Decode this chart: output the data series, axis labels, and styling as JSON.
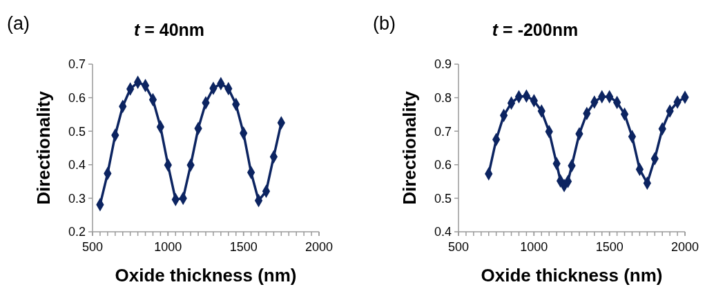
{
  "chart_data": [
    {
      "type": "line",
      "title": "t = 40nm",
      "annotations": [
        "(a)"
      ],
      "xlabel": "Oxide thickness (nm)",
      "ylabel": "Directionality",
      "marker": "diamond",
      "xlim": [
        500,
        2000
      ],
      "xticks": [
        500,
        1000,
        1500,
        2000
      ],
      "ylim": [
        0.2,
        0.7
      ],
      "yticks": [
        0.2,
        0.3,
        0.4,
        0.5,
        0.6,
        0.7
      ],
      "series": [
        {
          "color": "#0c2461",
          "x": [
            550,
            600,
            650,
            700,
            750,
            800,
            850,
            900,
            950,
            1000,
            1050,
            1100,
            1150,
            1200,
            1250,
            1300,
            1350,
            1400,
            1450,
            1500,
            1550,
            1600,
            1650,
            1700,
            1750
          ],
          "values": [
            0.281,
            0.374,
            0.488,
            0.574,
            0.626,
            0.646,
            0.636,
            0.594,
            0.513,
            0.399,
            0.296,
            0.3,
            0.399,
            0.508,
            0.585,
            0.628,
            0.642,
            0.627,
            0.58,
            0.494,
            0.377,
            0.293,
            0.321,
            0.424,
            0.525
          ]
        }
      ]
    },
    {
      "type": "line",
      "title": "t = -200nm",
      "annotations": [
        "(b)"
      ],
      "xlabel": "Oxide thickness (nm)",
      "ylabel": "Directionality",
      "marker": "diamond",
      "xlim": [
        500,
        2000
      ],
      "xticks": [
        500,
        1000,
        1500,
        2000
      ],
      "ylim": [
        0.4,
        0.9
      ],
      "yticks": [
        0.4,
        0.5,
        0.6,
        0.7,
        0.8,
        0.9
      ],
      "series": [
        {
          "color": "#0c2461",
          "x": [
            700,
            750,
            800,
            850,
            900,
            950,
            1000,
            1050,
            1100,
            1150,
            1175,
            1200,
            1225,
            1250,
            1300,
            1350,
            1400,
            1450,
            1500,
            1550,
            1600,
            1650,
            1700,
            1750,
            1800,
            1850,
            1900,
            1950,
            2000
          ],
          "values": [
            0.573,
            0.675,
            0.747,
            0.784,
            0.803,
            0.805,
            0.791,
            0.76,
            0.699,
            0.603,
            0.552,
            0.538,
            0.55,
            0.597,
            0.692,
            0.753,
            0.787,
            0.803,
            0.803,
            0.786,
            0.751,
            0.684,
            0.586,
            0.545,
            0.618,
            0.707,
            0.76,
            0.787,
            0.801
          ]
        }
      ]
    }
  ]
}
